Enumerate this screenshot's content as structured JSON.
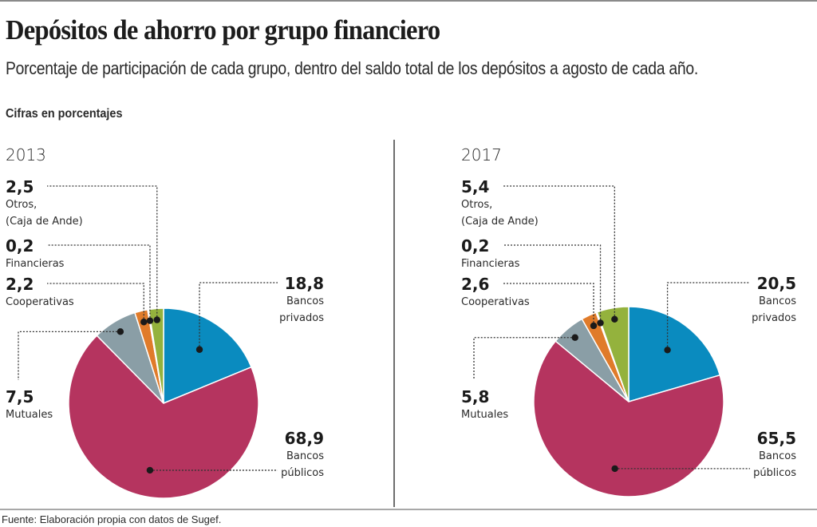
{
  "header": {
    "title": "Depósitos de ahorro por grupo financiero",
    "subtitle": "Porcentaje de participación de cada grupo, dentro del saldo total de los depósitos a agosto de cada año.",
    "units_note": "Cifras en porcentajes"
  },
  "footer": {
    "source": "Fuente: Elaboración propia con datos de Sugef."
  },
  "colors": {
    "bancos_privados": "#0a8bbf",
    "bancos_publicos": "#b5345f",
    "mutuales": "#8a9ea6",
    "cooperativas": "#e07b2a",
    "financieras": "#e8d7a6",
    "otros": "#94b23d"
  },
  "chart_data": [
    {
      "type": "pie",
      "title": "2013",
      "units": "percent",
      "slices": [
        {
          "key": "bancos_privados",
          "label_lines": [
            "Bancos",
            "privados"
          ],
          "value": 18.8,
          "display": "18,8"
        },
        {
          "key": "bancos_publicos",
          "label_lines": [
            "Bancos",
            "públicos"
          ],
          "value": 68.9,
          "display": "68,9"
        },
        {
          "key": "mutuales",
          "label_lines": [
            "Mutuales"
          ],
          "value": 7.5,
          "display": "7,5"
        },
        {
          "key": "cooperativas",
          "label_lines": [
            "Cooperativas"
          ],
          "value": 2.2,
          "display": "2,2"
        },
        {
          "key": "financieras",
          "label_lines": [
            "Financieras"
          ],
          "value": 0.2,
          "display": "0,2"
        },
        {
          "key": "otros",
          "label_lines": [
            "Otros,",
            "(Caja de Ande)"
          ],
          "value": 2.5,
          "display": "2,5"
        }
      ]
    },
    {
      "type": "pie",
      "title": "2017",
      "units": "percent",
      "slices": [
        {
          "key": "bancos_privados",
          "label_lines": [
            "Bancos",
            "privados"
          ],
          "value": 20.5,
          "display": "20,5"
        },
        {
          "key": "bancos_publicos",
          "label_lines": [
            "Bancos",
            "públicos"
          ],
          "value": 65.5,
          "display": "65,5"
        },
        {
          "key": "mutuales",
          "label_lines": [
            "Mutuales"
          ],
          "value": 5.8,
          "display": "5,8"
        },
        {
          "key": "cooperativas",
          "label_lines": [
            "Cooperativas"
          ],
          "value": 2.6,
          "display": "2,6"
        },
        {
          "key": "financieras",
          "label_lines": [
            "Financieras"
          ],
          "value": 0.2,
          "display": "0,2"
        },
        {
          "key": "otros",
          "label_lines": [
            "Otros,",
            "(Caja de Ande)"
          ],
          "value": 5.4,
          "display": "5,4"
        }
      ]
    }
  ]
}
